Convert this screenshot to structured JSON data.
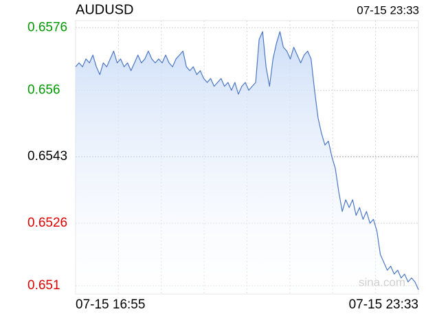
{
  "chart_data": {
    "type": "line",
    "title": "AUDUSD",
    "time": "07-15 23:33",
    "watermark": "sina.com",
    "categories": [
      "07-15 16:55",
      null,
      null,
      null,
      null,
      null,
      null,
      null,
      null,
      null,
      null,
      null,
      null,
      null,
      null,
      null,
      null,
      null,
      null,
      null,
      null,
      null,
      null,
      null,
      null,
      null,
      null,
      null,
      null,
      null,
      null,
      null,
      null,
      null,
      null,
      null,
      null,
      null,
      null,
      null,
      null,
      null,
      null,
      null,
      null,
      null,
      null,
      null,
      null,
      null,
      null,
      null,
      null,
      null,
      null,
      null,
      null,
      null,
      null,
      null,
      null,
      null,
      null,
      null,
      null,
      null,
      null,
      null,
      null,
      null,
      null,
      null,
      null,
      null,
      null,
      null,
      null,
      null,
      null,
      null,
      null,
      null,
      null,
      null,
      null,
      null,
      null,
      null,
      null,
      null,
      null,
      null,
      null,
      null,
      null,
      null,
      null,
      null,
      null,
      "07-15 23:33"
    ],
    "series": [
      {
        "name": "AUDUSD",
        "color": "#4a76c4",
        "values": [
          0.6566,
          0.6567,
          0.6566,
          0.6568,
          0.6567,
          0.6569,
          0.6566,
          0.6564,
          0.6567,
          0.6566,
          0.6568,
          0.657,
          0.6567,
          0.6568,
          0.6566,
          0.6567,
          0.6565,
          0.6567,
          0.6569,
          0.6567,
          0.6568,
          0.657,
          0.6568,
          0.6567,
          0.6568,
          0.6567,
          0.6569,
          0.6567,
          0.6566,
          0.6568,
          0.6569,
          0.657,
          0.6566,
          0.6565,
          0.6566,
          0.6564,
          0.6565,
          0.6563,
          0.6562,
          0.6563,
          0.6561,
          0.6562,
          0.6563,
          0.6561,
          0.6562,
          0.656,
          0.6562,
          0.6559,
          0.6561,
          0.6562,
          0.656,
          0.6561,
          0.6562,
          0.6573,
          0.6575,
          0.6566,
          0.6561,
          0.6568,
          0.6572,
          0.6575,
          0.6571,
          0.657,
          0.6568,
          0.6571,
          0.6569,
          0.6567,
          0.6569,
          0.657,
          0.6568,
          0.656,
          0.6553,
          0.6549,
          0.6546,
          0.6547,
          0.6543,
          0.654,
          0.6534,
          0.6529,
          0.6532,
          0.653,
          0.6532,
          0.6528,
          0.653,
          0.6527,
          0.6529,
          0.6526,
          0.6527,
          0.6524,
          0.6518,
          0.6516,
          0.6514,
          0.6515,
          0.6513,
          0.6514,
          0.6512,
          0.6513,
          0.6511,
          0.6512,
          0.6511,
          0.6509
        ]
      }
    ],
    "ylim": [
      0.65079,
      0.65778
    ],
    "yticks": [
      0.6576,
      0.656,
      0.6543,
      0.6526,
      0.651
    ],
    "base_value": 0.6543,
    "up_color": "#009900",
    "down_color": "#dd0000",
    "neutral_color": "#000000",
    "area_color": "#c9dbf7",
    "grid": true,
    "vertical_grid_count": 8
  }
}
